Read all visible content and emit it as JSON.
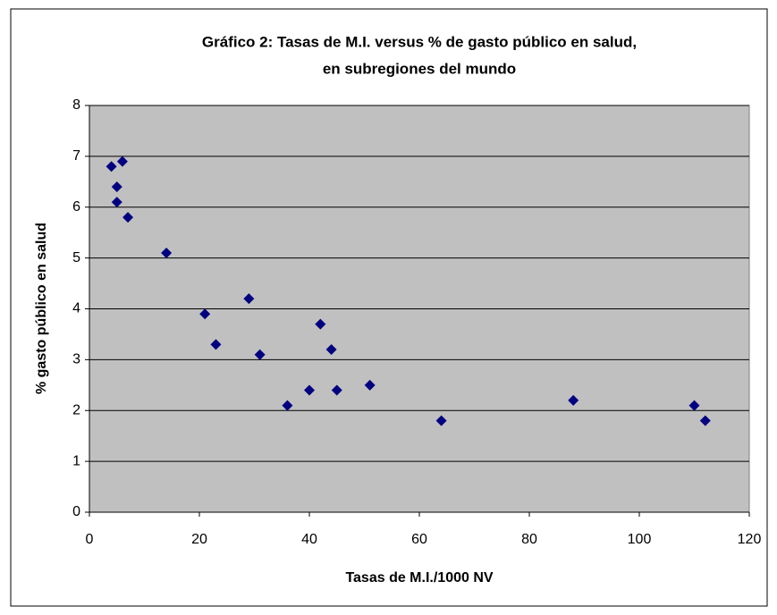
{
  "chart_data": {
    "type": "scatter",
    "title": [
      "Gráfico 2: Tasas de M.I. versus % de gasto público en salud,",
      "en subregiones del mundo"
    ],
    "x_label": "Tasas de M.I./1000 NV",
    "y_label": "% gasto público en salud",
    "x": [
      4,
      6,
      5,
      5,
      7,
      14,
      21,
      23,
      29,
      31,
      36,
      40,
      42,
      44,
      45,
      51,
      64,
      88,
      110,
      112
    ],
    "values": [
      6.8,
      6.9,
      6.4,
      6.1,
      5.8,
      5.1,
      3.9,
      3.3,
      4.2,
      3.1,
      2.1,
      2.4,
      3.7,
      3.2,
      2.4,
      2.5,
      1.8,
      2.2,
      2.1,
      1.8
    ],
    "color": "#000080",
    "xlim": [
      0,
      120
    ],
    "xticks": [
      0,
      20,
      40,
      60,
      80,
      100,
      120
    ],
    "ylim": [
      0,
      8
    ],
    "yticks": [
      0,
      1,
      2,
      3,
      4,
      5,
      6,
      7,
      8
    ],
    "grid": true
  }
}
